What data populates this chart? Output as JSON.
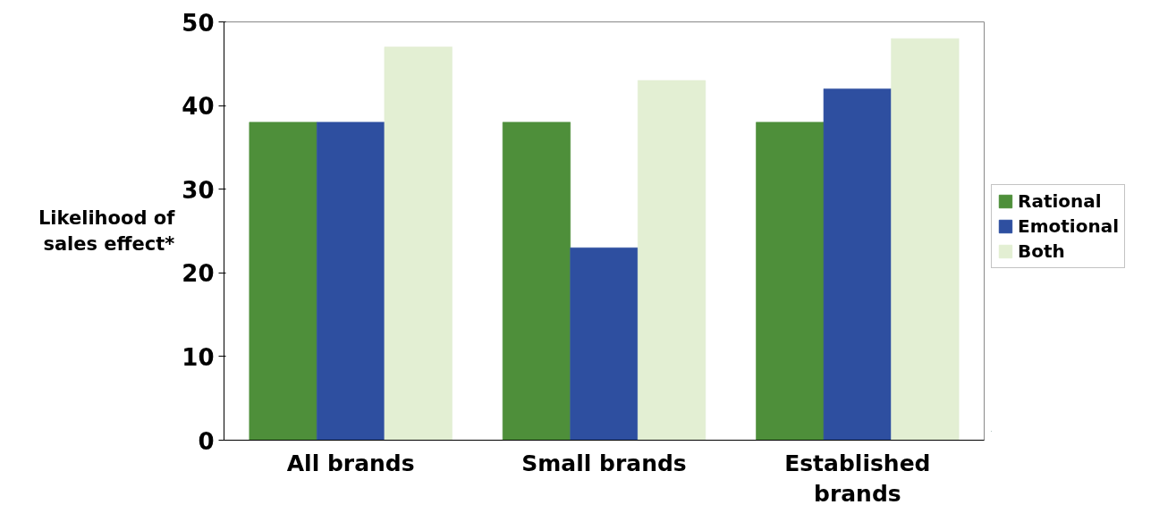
{
  "chart_data": {
    "type": "bar",
    "ylabel": "Likelihood of sales effect*",
    "categories": [
      "All brands",
      "Small brands",
      "Established brands"
    ],
    "series": [
      {
        "name": "Rational",
        "color": "#4e8f3a",
        "values": [
          38,
          38,
          38
        ]
      },
      {
        "name": "Emotional",
        "color": "#2e4fa0",
        "values": [
          38,
          23,
          42
        ]
      },
      {
        "name": "Both",
        "color": "#e3efd3",
        "values": [
          47,
          43,
          48
        ]
      }
    ],
    "ylim": [
      0,
      50
    ],
    "yticks": [
      0,
      10,
      20,
      30,
      40,
      50
    ],
    "grid": false,
    "legend": "right"
  }
}
